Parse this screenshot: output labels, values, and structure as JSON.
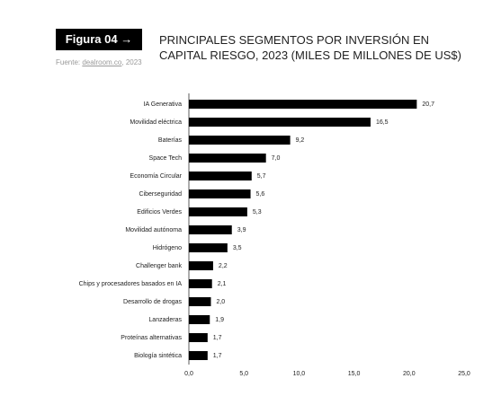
{
  "figure_label": "Figura 04 →",
  "source": {
    "prefix": "Fuente: ",
    "link": "dealroom.co",
    "suffix": ", 2023"
  },
  "chart_data": {
    "type": "bar",
    "orientation": "horizontal",
    "title": "PRINCIPALES SEGMENTOS POR INVERSIÓN EN CAPITAL RIESGO, 2023 (MILES DE MILLONES DE US$)",
    "categories": [
      "IA Generativa",
      "Movilidad eléctrica",
      "Baterías",
      "Space Tech",
      "Economía Circular",
      "Ciberseguridad",
      "Edificios Verdes",
      "Movilidad autónoma",
      "Hidrógeno",
      "Challenger bank",
      "Chips y procesadores basados en IA",
      "Desarrollo de drogas",
      "Lanzaderas",
      "Proteínas alternativas",
      "Biología sintética"
    ],
    "values": [
      20.7,
      16.5,
      9.2,
      7.0,
      5.7,
      5.6,
      5.3,
      3.9,
      3.5,
      2.2,
      2.1,
      2.0,
      1.9,
      1.7,
      1.7
    ],
    "value_labels": [
      "20,7",
      "16,5",
      "9,2",
      "7,0",
      "5,7",
      "5,6",
      "5,3",
      "3,9",
      "3,5",
      "2,2",
      "2,1",
      "2,0",
      "1,9",
      "1,7",
      "1,7"
    ],
    "color": "#000000",
    "xlim": [
      0,
      25
    ],
    "xticks": [
      {
        "value": 0,
        "label": "0,0"
      },
      {
        "value": 5,
        "label": "5,0"
      },
      {
        "value": 10,
        "label": "10,0"
      },
      {
        "value": 15,
        "label": "15,0"
      },
      {
        "value": 20,
        "label": "20,0"
      },
      {
        "value": 25,
        "label": "25,0"
      }
    ],
    "grid": false
  }
}
